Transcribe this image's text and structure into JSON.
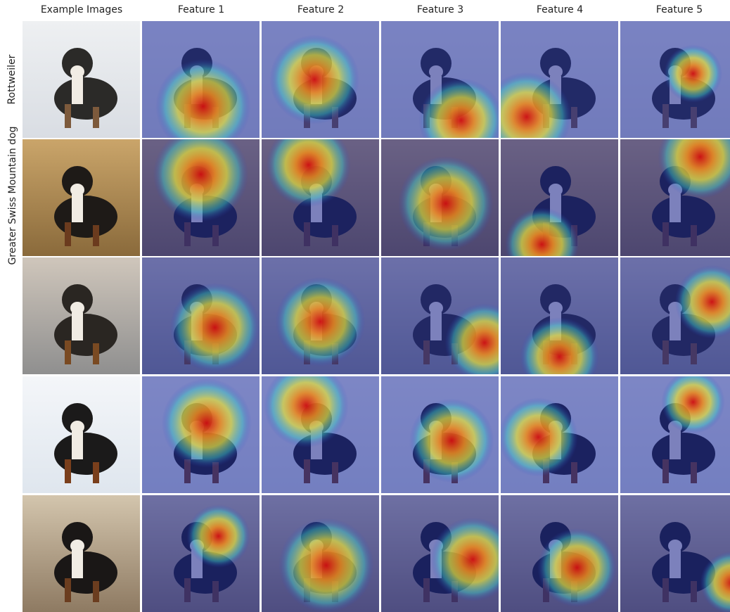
{
  "columns": [
    "Example Images",
    "Feature 1",
    "Feature 2",
    "Feature 3",
    "Feature 4",
    "Feature 5"
  ],
  "row_labels": {
    "rottweiler": "Rottweiler",
    "greater_swiss": "Greater Swiss Mountain dog"
  },
  "rows": [
    {
      "scene": "snow-forest-person-dog",
      "heat": [
        [
          0.52,
          0.73,
          0.9
        ],
        [
          0.45,
          0.5,
          0.85
        ],
        [
          0.68,
          0.85,
          0.8
        ],
        [
          0.22,
          0.82,
          0.85
        ],
        [
          0.62,
          0.45,
          0.55
        ]
      ]
    },
    {
      "scene": "dog-indoor-floor",
      "heat": [
        [
          0.5,
          0.3,
          0.9
        ],
        [
          0.4,
          0.22,
          0.8
        ],
        [
          0.55,
          0.55,
          0.9
        ],
        [
          0.35,
          0.9,
          0.7
        ],
        [
          0.68,
          0.15,
          0.8
        ]
      ]
    },
    {
      "scene": "dog-walking-beach",
      "heat": [
        [
          0.62,
          0.6,
          0.85
        ],
        [
          0.5,
          0.55,
          0.85
        ],
        [
          0.88,
          0.73,
          0.75
        ],
        [
          0.5,
          0.85,
          0.75
        ],
        [
          0.78,
          0.38,
          0.7
        ]
      ]
    },
    {
      "scene": "dog-running-snow",
      "heat": [
        [
          0.55,
          0.4,
          0.85
        ],
        [
          0.38,
          0.25,
          0.8
        ],
        [
          0.6,
          0.55,
          0.8
        ],
        [
          0.32,
          0.52,
          0.75
        ],
        [
          0.62,
          0.22,
          0.6
        ]
      ]
    },
    {
      "scene": "dogs-on-bed",
      "heat": [
        [
          0.65,
          0.35,
          0.6
        ],
        [
          0.55,
          0.6,
          0.9
        ],
        [
          0.78,
          0.55,
          0.8
        ],
        [
          0.65,
          0.62,
          0.75
        ],
        [
          0.95,
          0.75,
          0.6
        ]
      ]
    }
  ]
}
